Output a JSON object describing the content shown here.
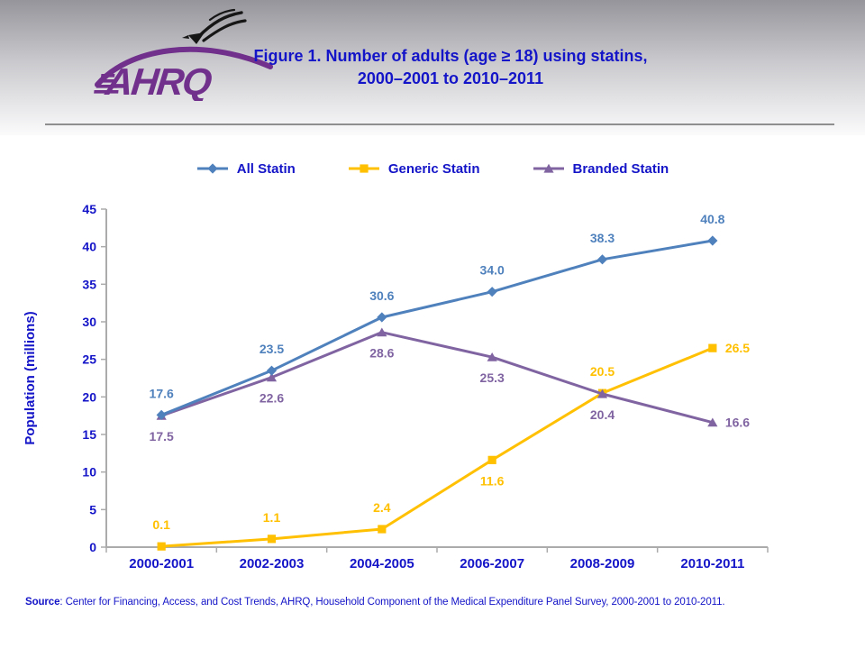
{
  "header": {
    "logo_text": "AHRQ",
    "title_line1": "Figure 1. Number of adults (age ≥ 18) using statins,",
    "title_line2": "2000–2001 to 2010–2011"
  },
  "chart_data": {
    "type": "line",
    "title": "Figure 1. Number of adults (age ≥ 18) using statins, 2000–2001 to 2010–2011",
    "categories": [
      "2000-2001",
      "2002-2003",
      "2004-2005",
      "2006-2007",
      "2008-2009",
      "2010-2011"
    ],
    "series": [
      {
        "name": "All Statin",
        "color": "#4F81BD",
        "marker": "diamond",
        "values": [
          17.6,
          23.5,
          30.6,
          34.0,
          38.3,
          40.8
        ],
        "label_positions": [
          "above",
          "above",
          "above",
          "above",
          "above",
          "above"
        ]
      },
      {
        "name": "Generic Statin",
        "color": "#FFC000",
        "marker": "square",
        "values": [
          0.1,
          1.1,
          2.4,
          11.6,
          20.5,
          26.5
        ],
        "label_positions": [
          "above",
          "above",
          "above",
          "below",
          "above",
          "right"
        ]
      },
      {
        "name": "Branded Statin",
        "color": "#8064A2",
        "marker": "triangle",
        "values": [
          17.5,
          22.6,
          28.6,
          25.3,
          20.4,
          16.6
        ],
        "label_positions": [
          "below",
          "below",
          "below",
          "below",
          "below",
          "right"
        ]
      }
    ],
    "draw_order": [
      1,
      2,
      0
    ],
    "xlabel": "",
    "ylabel": "Population (millions)",
    "ylim": [
      0,
      45
    ],
    "ytick_step": 5,
    "grid": false,
    "legend_position": "top",
    "value_decimals": 1
  },
  "source": {
    "label": "Source",
    "text": ": Center for Financing, Access, and Cost Trends, AHRQ, Household Component of the Medical Expenditure Panel Survey, 2000-2001 to 2010-2011."
  },
  "colors": {
    "text_blue": "#1414C8",
    "axis_gray": "#ABABAB",
    "divider_gray": "#8F8F8F",
    "logo_purple": "#70308C",
    "eagle_black": "#161616",
    "header_gradient_top": "#95959B",
    "header_gradient_bottom": "#FBFBFC"
  }
}
